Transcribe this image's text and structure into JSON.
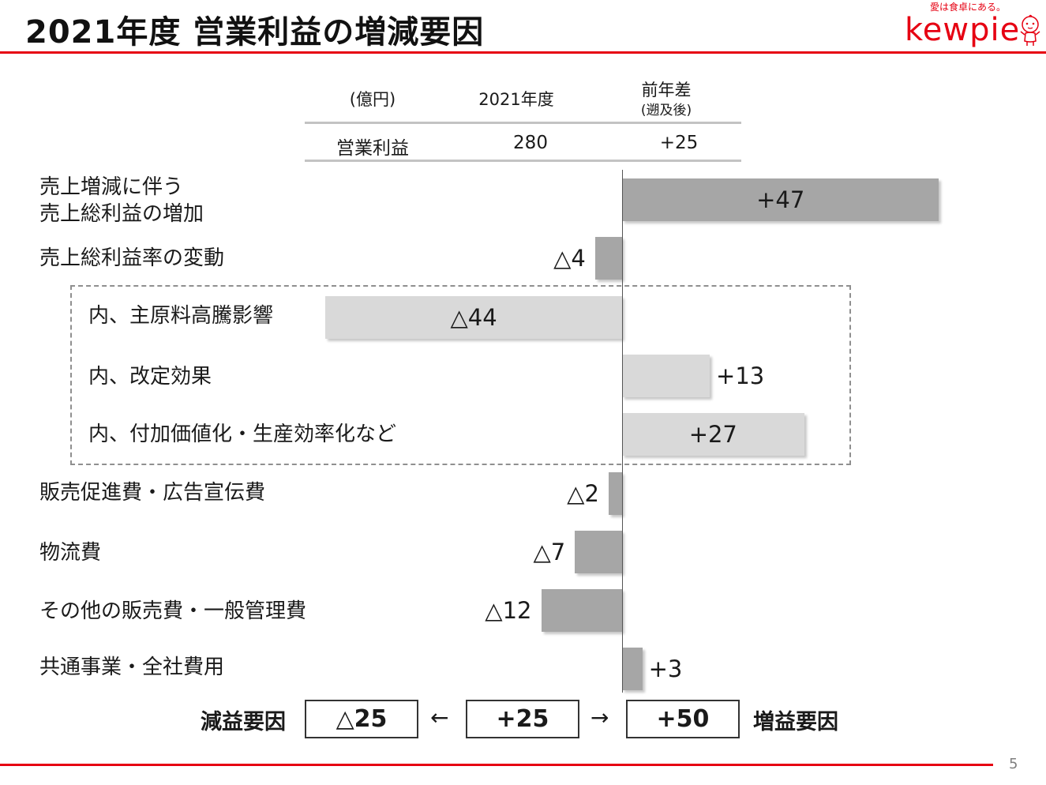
{
  "slide": {
    "title": "2021年度 営業利益の増減要因",
    "page_number": "5",
    "accent_color": "#e60012"
  },
  "logo": {
    "tagline": "愛は食卓にある。",
    "brand": "kewpie"
  },
  "summary_table": {
    "headers": [
      "(億円)",
      "2021年度",
      "前年差",
      "(遡及後)"
    ],
    "row": [
      "営業利益",
      "280",
      "+25"
    ]
  },
  "chart_data": {
    "type": "bar",
    "orientation": "horizontal",
    "unit": "億円",
    "categories": [
      "売上増減に伴う売上総利益の増加",
      "売上総利益率の変動",
      "内、主原料高騰影響",
      "内、改定効果",
      "内、付加価値化・生産効率化など",
      "販売促進費・広告宣伝費",
      "物流費",
      "その他の販売費・一般管理費",
      "共通事業・全社費用"
    ],
    "category_lines": [
      [
        "売上増減に伴う",
        "売上総利益の増加"
      ],
      [
        "売上総利益率の変動"
      ],
      [
        "内、主原料高騰影響"
      ],
      [
        "内、改定効果"
      ],
      [
        "内、付加価値化・生産効率化など"
      ],
      [
        "販売促進費・広告宣伝費"
      ],
      [
        "物流費"
      ],
      [
        "その他の販売費・一般管理費"
      ],
      [
        "共通事業・全社費用"
      ]
    ],
    "values": [
      47,
      -4,
      -44,
      13,
      27,
      -2,
      -7,
      -12,
      3
    ],
    "value_labels": [
      "+47",
      "△4",
      "△44",
      "+13",
      "+27",
      "△2",
      "△7",
      "△12",
      "+3"
    ],
    "sub_items": [
      false,
      false,
      true,
      true,
      true,
      false,
      false,
      false,
      false
    ],
    "xlim": [
      -44,
      47
    ],
    "colors": {
      "main": "#a6a6a6",
      "sub": "#d9d9d9"
    }
  },
  "summary": {
    "decrease_label": "減益要因",
    "decrease_value": "△25",
    "net_value": "+25",
    "increase_value": "+50",
    "increase_label": "増益要因",
    "left_arrow": "←",
    "right_arrow": "→"
  }
}
